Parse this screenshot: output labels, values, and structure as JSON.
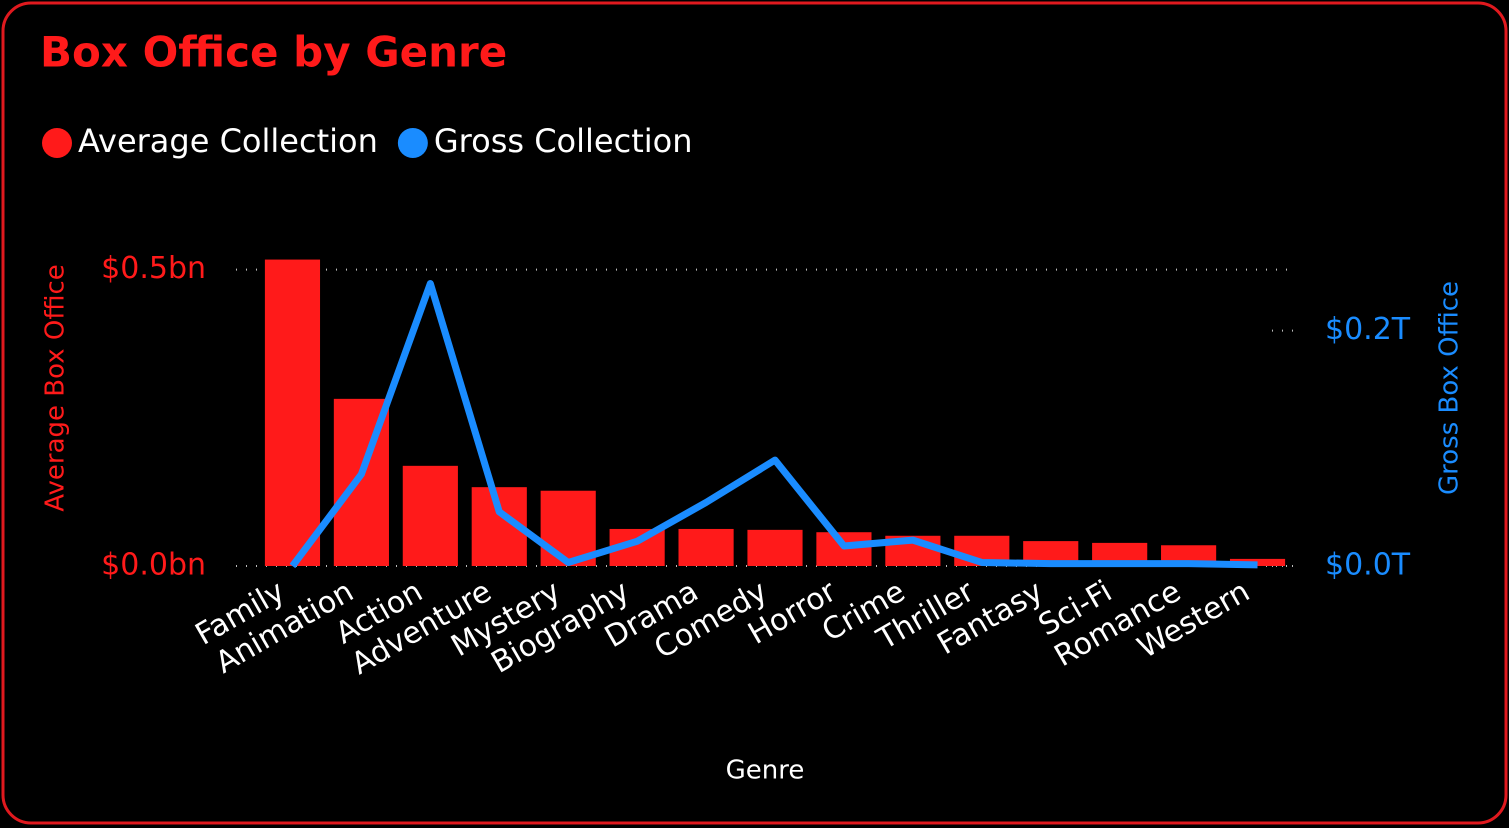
{
  "chart_data": {
    "type": "bar_line_dual_axis",
    "title": "Box Office by Genre",
    "x_label": "Genre",
    "y_label": "Average Box Office",
    "y2_label": "Gross Box Office",
    "categories": [
      "Family",
      "Animation",
      "Action",
      "Adventure",
      "Mystery",
      "Biography",
      "Drama",
      "Comedy",
      "Horror",
      "Crime",
      "Thriller",
      "Fantasy",
      "Sci-Fi",
      "Romance",
      "Western"
    ],
    "series": [
      {
        "name": "Average Collection",
        "color": "#ff1a1a",
        "type": "bar",
        "values": [
          0.517,
          0.282,
          0.169,
          0.133,
          0.127,
          0.0625,
          0.0625,
          0.061,
          0.057,
          0.051,
          0.051,
          0.042,
          0.039,
          0.035,
          0.012
        ]
      },
      {
        "name": "Gross Collection",
        "color": "#1a8cff",
        "type": "line",
        "axis": "y2",
        "values": [
          0,
          0.078,
          0.24,
          0.046,
          0.003,
          0.021,
          0.054,
          0.09,
          0.017,
          0.022,
          0.003,
          0.002,
          0.002,
          0.002,
          0.001
        ]
      }
    ],
    "ylim": [
      0,
      0.55
    ],
    "yticks": [
      {
        "value": 0,
        "label": "$0.0bn"
      },
      {
        "value": 0.5,
        "label": "$0.5bn"
      }
    ],
    "y2lim": [
      0,
      0.277
    ],
    "y2ticks": [
      {
        "value": 0,
        "label": "$0.0T"
      },
      {
        "value": 0.2,
        "label": "$0.2T"
      }
    ],
    "grid": true,
    "legend": "top-left"
  }
}
